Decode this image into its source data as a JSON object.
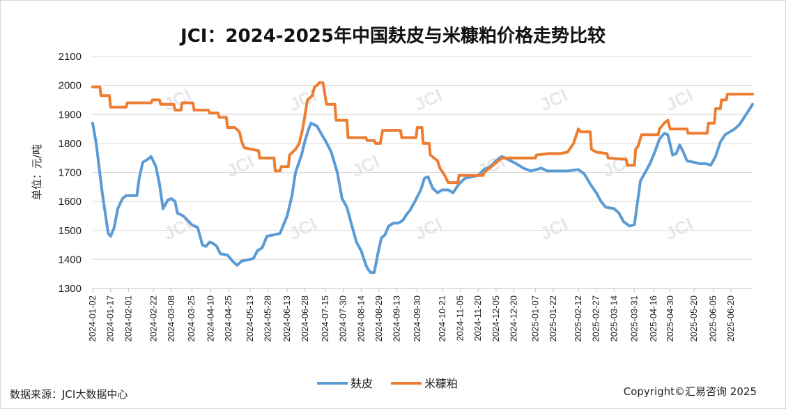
{
  "footer": {
    "source": "数据来源：JCI大数据中心",
    "copyright": "Copyright©汇易咨询 2025"
  },
  "watermark": "JCI",
  "chart_data": {
    "type": "line",
    "title": "JCI：2024-2025年中国麸皮与米糠粕价格走势比较",
    "ylabel": "单位：元/吨",
    "xlabel": "",
    "ylim": [
      1300,
      2100
    ],
    "yticks": [
      1300,
      1400,
      1500,
      1600,
      1700,
      1800,
      1900,
      2000,
      2100
    ],
    "grid": "horizontal",
    "legend_position": "bottom",
    "x_range": [
      "2024-01-02",
      "2025-07-08"
    ],
    "x_ticks": [
      "2024-01-02",
      "2024-01-17",
      "2024-02-01",
      "2024-02-22",
      "2024-03-08",
      "2024-03-25",
      "2024-04-10",
      "2024-04-25",
      "2024-05-13",
      "2024-05-28",
      "2024-06-13",
      "2024-06-28",
      "2024-07-15",
      "2024-07-30",
      "2024-08-14",
      "2024-08-29",
      "2024-09-13",
      "2024-09-30",
      "2024-10-21",
      "2024-11-05",
      "2024-11-20",
      "2024-12-05",
      "2024-12-20",
      "2025-01-07",
      "2025-01-22",
      "2025-02-12",
      "2025-02-27",
      "2025-03-14",
      "2025-03-31",
      "2025-04-16",
      "2025-04-30",
      "2025-05-20",
      "2025-06-05",
      "2025-06-20"
    ],
    "series": [
      {
        "name": "麸皮",
        "color": "#5b9bd5",
        "points": [
          [
            "2024-01-02",
            1870
          ],
          [
            "2024-01-05",
            1800
          ],
          [
            "2024-01-10",
            1630
          ],
          [
            "2024-01-15",
            1490
          ],
          [
            "2024-01-17",
            1480
          ],
          [
            "2024-01-20",
            1510
          ],
          [
            "2024-01-23",
            1575
          ],
          [
            "2024-01-27",
            1610
          ],
          [
            "2024-01-30",
            1620
          ],
          [
            "2024-02-08",
            1620
          ],
          [
            "2024-02-10",
            1680
          ],
          [
            "2024-02-13",
            1735
          ],
          [
            "2024-02-17",
            1745
          ],
          [
            "2024-02-20",
            1755
          ],
          [
            "2024-02-24",
            1720
          ],
          [
            "2024-02-27",
            1660
          ],
          [
            "2024-03-01",
            1575
          ],
          [
            "2024-03-05",
            1605
          ],
          [
            "2024-03-08",
            1610
          ],
          [
            "2024-03-11",
            1600
          ],
          [
            "2024-03-13",
            1560
          ],
          [
            "2024-03-18",
            1550
          ],
          [
            "2024-03-25",
            1520
          ],
          [
            "2024-03-30",
            1510
          ],
          [
            "2024-04-03",
            1450
          ],
          [
            "2024-04-06",
            1445
          ],
          [
            "2024-04-09",
            1460
          ],
          [
            "2024-04-12",
            1455
          ],
          [
            "2024-04-15",
            1445
          ],
          [
            "2024-04-18",
            1420
          ],
          [
            "2024-04-24",
            1415
          ],
          [
            "2024-04-28",
            1395
          ],
          [
            "2024-05-02",
            1380
          ],
          [
            "2024-05-06",
            1395
          ],
          [
            "2024-05-13",
            1400
          ],
          [
            "2024-05-16",
            1405
          ],
          [
            "2024-05-19",
            1430
          ],
          [
            "2024-05-23",
            1440
          ],
          [
            "2024-05-27",
            1480
          ],
          [
            "2024-06-02",
            1485
          ],
          [
            "2024-06-07",
            1490
          ],
          [
            "2024-06-13",
            1550
          ],
          [
            "2024-06-17",
            1620
          ],
          [
            "2024-06-20",
            1700
          ],
          [
            "2024-06-25",
            1760
          ],
          [
            "2024-06-28",
            1810
          ],
          [
            "2024-07-01",
            1850
          ],
          [
            "2024-07-03",
            1870
          ],
          [
            "2024-07-08",
            1860
          ],
          [
            "2024-07-12",
            1830
          ],
          [
            "2024-07-15",
            1810
          ],
          [
            "2024-07-20",
            1770
          ],
          [
            "2024-07-25",
            1700
          ],
          [
            "2024-07-29",
            1610
          ],
          [
            "2024-08-02",
            1580
          ],
          [
            "2024-08-06",
            1520
          ],
          [
            "2024-08-10",
            1460
          ],
          [
            "2024-08-14",
            1430
          ],
          [
            "2024-08-18",
            1380
          ],
          [
            "2024-08-20",
            1365
          ],
          [
            "2024-08-22",
            1355
          ],
          [
            "2024-08-25",
            1355
          ],
          [
            "2024-08-28",
            1420
          ],
          [
            "2024-08-31",
            1475
          ],
          [
            "2024-09-03",
            1485
          ],
          [
            "2024-09-06",
            1515
          ],
          [
            "2024-09-10",
            1525
          ],
          [
            "2024-09-14",
            1525
          ],
          [
            "2024-09-18",
            1535
          ],
          [
            "2024-09-21",
            1555
          ],
          [
            "2024-09-24",
            1570
          ],
          [
            "2024-09-28",
            1600
          ],
          [
            "2024-10-03",
            1640
          ],
          [
            "2024-10-06",
            1680
          ],
          [
            "2024-10-09",
            1685
          ],
          [
            "2024-10-13",
            1645
          ],
          [
            "2024-10-17",
            1630
          ],
          [
            "2024-10-21",
            1640
          ],
          [
            "2024-10-26",
            1640
          ],
          [
            "2024-10-30",
            1630
          ],
          [
            "2024-11-04",
            1660
          ],
          [
            "2024-11-09",
            1680
          ],
          [
            "2024-11-15",
            1685
          ],
          [
            "2024-11-20",
            1690
          ],
          [
            "2024-11-25",
            1710
          ],
          [
            "2024-11-30",
            1720
          ],
          [
            "2024-12-05",
            1740
          ],
          [
            "2024-12-10",
            1755
          ],
          [
            "2024-12-15",
            1745
          ],
          [
            "2024-12-22",
            1730
          ],
          [
            "2024-12-28",
            1715
          ],
          [
            "2025-01-03",
            1705
          ],
          [
            "2025-01-08",
            1710
          ],
          [
            "2025-01-12",
            1715
          ],
          [
            "2025-01-17",
            1705
          ],
          [
            "2025-01-22",
            1705
          ],
          [
            "2025-02-03",
            1705
          ],
          [
            "2025-02-12",
            1710
          ],
          [
            "2025-02-17",
            1695
          ],
          [
            "2025-02-22",
            1660
          ],
          [
            "2025-02-27",
            1630
          ],
          [
            "2025-03-03",
            1600
          ],
          [
            "2025-03-07",
            1580
          ],
          [
            "2025-03-14",
            1575
          ],
          [
            "2025-03-18",
            1560
          ],
          [
            "2025-03-22",
            1530
          ],
          [
            "2025-03-27",
            1515
          ],
          [
            "2025-03-31",
            1520
          ],
          [
            "2025-04-02",
            1580
          ],
          [
            "2025-04-05",
            1670
          ],
          [
            "2025-04-09",
            1700
          ],
          [
            "2025-04-13",
            1730
          ],
          [
            "2025-04-17",
            1770
          ],
          [
            "2025-04-21",
            1815
          ],
          [
            "2025-04-25",
            1835
          ],
          [
            "2025-04-28",
            1830
          ],
          [
            "2025-05-02",
            1760
          ],
          [
            "2025-05-05",
            1765
          ],
          [
            "2025-05-08",
            1795
          ],
          [
            "2025-05-11",
            1770
          ],
          [
            "2025-05-14",
            1740
          ],
          [
            "2025-05-20",
            1735
          ],
          [
            "2025-05-25",
            1730
          ],
          [
            "2025-05-30",
            1730
          ],
          [
            "2025-06-03",
            1725
          ],
          [
            "2025-06-07",
            1755
          ],
          [
            "2025-06-11",
            1805
          ],
          [
            "2025-06-15",
            1830
          ],
          [
            "2025-06-19",
            1840
          ],
          [
            "2025-06-23",
            1850
          ],
          [
            "2025-06-27",
            1865
          ],
          [
            "2025-07-01",
            1890
          ],
          [
            "2025-07-05",
            1915
          ],
          [
            "2025-07-08",
            1935
          ]
        ]
      },
      {
        "name": "米糠粕",
        "color": "#ed7d31",
        "points": [
          [
            "2024-01-02",
            1995
          ],
          [
            "2024-01-08",
            1995
          ],
          [
            "2024-01-09",
            1965
          ],
          [
            "2024-01-16",
            1965
          ],
          [
            "2024-01-17",
            1925
          ],
          [
            "2024-01-30",
            1925
          ],
          [
            "2024-01-31",
            1940
          ],
          [
            "2024-02-20",
            1940
          ],
          [
            "2024-02-21",
            1950
          ],
          [
            "2024-02-27",
            1950
          ],
          [
            "2024-02-28",
            1935
          ],
          [
            "2024-03-10",
            1935
          ],
          [
            "2024-03-11",
            1915
          ],
          [
            "2024-03-16",
            1915
          ],
          [
            "2024-03-17",
            1940
          ],
          [
            "2024-03-26",
            1940
          ],
          [
            "2024-03-27",
            1915
          ],
          [
            "2024-04-08",
            1915
          ],
          [
            "2024-04-09",
            1905
          ],
          [
            "2024-04-16",
            1905
          ],
          [
            "2024-04-17",
            1890
          ],
          [
            "2024-04-23",
            1890
          ],
          [
            "2024-04-24",
            1855
          ],
          [
            "2024-04-30",
            1855
          ],
          [
            "2024-05-04",
            1840
          ],
          [
            "2024-05-06",
            1805
          ],
          [
            "2024-05-08",
            1785
          ],
          [
            "2024-05-14",
            1780
          ],
          [
            "2024-05-20",
            1775
          ],
          [
            "2024-05-21",
            1750
          ],
          [
            "2024-06-02",
            1750
          ],
          [
            "2024-06-03",
            1705
          ],
          [
            "2024-06-07",
            1705
          ],
          [
            "2024-06-08",
            1720
          ],
          [
            "2024-06-14",
            1720
          ],
          [
            "2024-06-15",
            1760
          ],
          [
            "2024-06-20",
            1780
          ],
          [
            "2024-06-23",
            1800
          ],
          [
            "2024-06-26",
            1850
          ],
          [
            "2024-06-30",
            1950
          ],
          [
            "2024-07-04",
            1965
          ],
          [
            "2024-07-06",
            1995
          ],
          [
            "2024-07-08",
            2000
          ],
          [
            "2024-07-10",
            2010
          ],
          [
            "2024-07-13",
            2010
          ],
          [
            "2024-07-16",
            1935
          ],
          [
            "2024-07-23",
            1935
          ],
          [
            "2024-07-24",
            1880
          ],
          [
            "2024-08-02",
            1880
          ],
          [
            "2024-08-03",
            1820
          ],
          [
            "2024-08-18",
            1820
          ],
          [
            "2024-08-19",
            1810
          ],
          [
            "2024-08-25",
            1810
          ],
          [
            "2024-08-26",
            1800
          ],
          [
            "2024-08-30",
            1800
          ],
          [
            "2024-09-01",
            1845
          ],
          [
            "2024-09-16",
            1845
          ],
          [
            "2024-09-17",
            1820
          ],
          [
            "2024-09-29",
            1820
          ],
          [
            "2024-09-30",
            1855
          ],
          [
            "2024-10-04",
            1855
          ],
          [
            "2024-10-05",
            1800
          ],
          [
            "2024-10-10",
            1800
          ],
          [
            "2024-10-11",
            1760
          ],
          [
            "2024-10-17",
            1740
          ],
          [
            "2024-10-19",
            1715
          ],
          [
            "2024-10-23",
            1690
          ],
          [
            "2024-10-26",
            1665
          ],
          [
            "2024-11-03",
            1665
          ],
          [
            "2024-11-04",
            1690
          ],
          [
            "2024-11-24",
            1690
          ],
          [
            "2024-11-25",
            1700
          ],
          [
            "2024-12-01",
            1720
          ],
          [
            "2024-12-10",
            1750
          ],
          [
            "2024-12-20",
            1750
          ],
          [
            "2025-01-07",
            1750
          ],
          [
            "2025-01-08",
            1760
          ],
          [
            "2025-01-18",
            1765
          ],
          [
            "2025-01-28",
            1765
          ],
          [
            "2025-02-03",
            1770
          ],
          [
            "2025-02-08",
            1800
          ],
          [
            "2025-02-10",
            1825
          ],
          [
            "2025-02-12",
            1850
          ],
          [
            "2025-02-14",
            1840
          ],
          [
            "2025-02-22",
            1840
          ],
          [
            "2025-02-23",
            1780
          ],
          [
            "2025-02-27",
            1770
          ],
          [
            "2025-03-08",
            1765
          ],
          [
            "2025-03-09",
            1750
          ],
          [
            "2025-03-24",
            1745
          ],
          [
            "2025-03-25",
            1725
          ],
          [
            "2025-03-31",
            1725
          ],
          [
            "2025-04-01",
            1780
          ],
          [
            "2025-04-03",
            1790
          ],
          [
            "2025-04-06",
            1830
          ],
          [
            "2025-04-20",
            1830
          ],
          [
            "2025-04-21",
            1850
          ],
          [
            "2025-04-25",
            1870
          ],
          [
            "2025-04-28",
            1880
          ],
          [
            "2025-04-30",
            1850
          ],
          [
            "2025-05-14",
            1850
          ],
          [
            "2025-05-15",
            1835
          ],
          [
            "2025-05-31",
            1835
          ],
          [
            "2025-06-01",
            1870
          ],
          [
            "2025-06-06",
            1870
          ],
          [
            "2025-06-07",
            1920
          ],
          [
            "2025-06-11",
            1920
          ],
          [
            "2025-06-12",
            1950
          ],
          [
            "2025-06-16",
            1950
          ],
          [
            "2025-06-17",
            1970
          ],
          [
            "2025-07-08",
            1970
          ]
        ]
      }
    ]
  }
}
